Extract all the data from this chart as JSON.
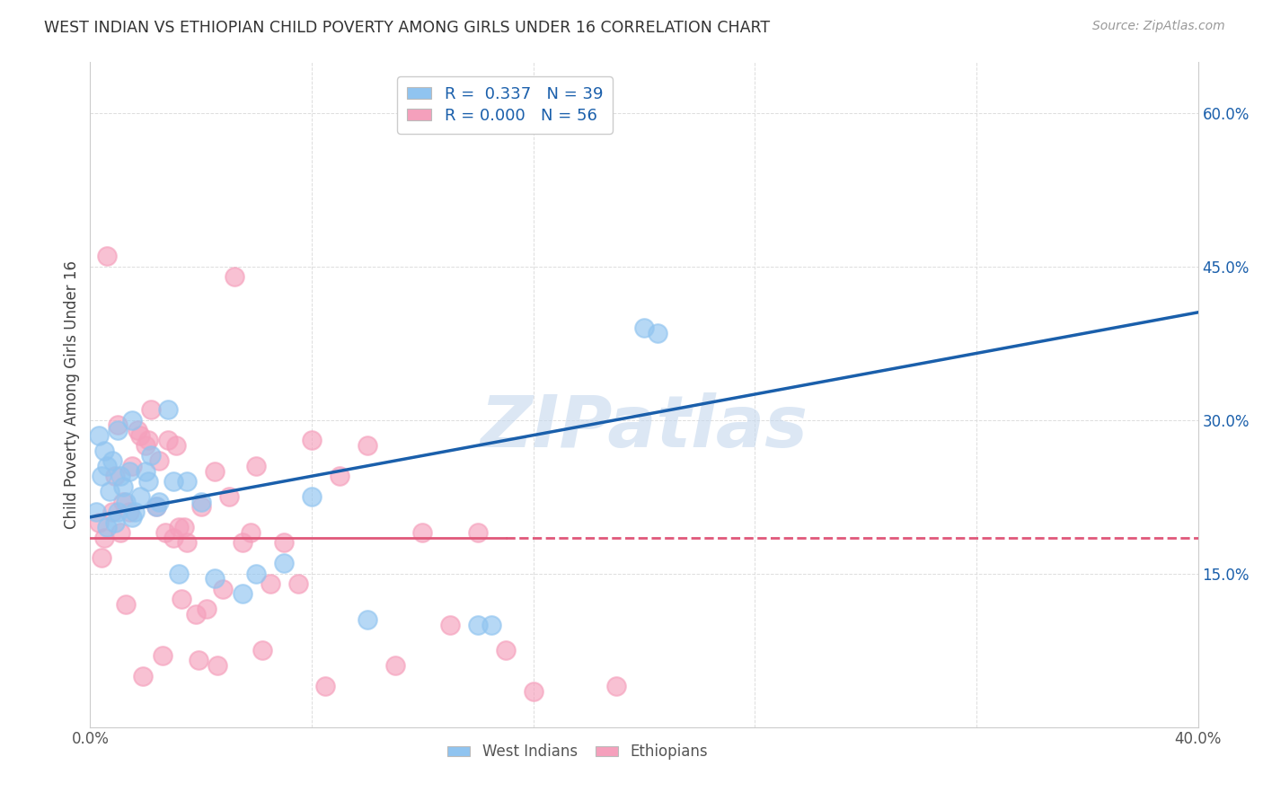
{
  "title": "WEST INDIAN VS ETHIOPIAN CHILD POVERTY AMONG GIRLS UNDER 16 CORRELATION CHART",
  "source": "Source: ZipAtlas.com",
  "ylabel": "Child Poverty Among Girls Under 16",
  "xlim": [
    0.0,
    40.0
  ],
  "ylim": [
    0.0,
    65.0
  ],
  "yticks": [
    15.0,
    30.0,
    45.0,
    60.0
  ],
  "xtick_positions": [
    0.0,
    8.0,
    16.0,
    24.0,
    32.0,
    40.0
  ],
  "xtick_labels": [
    "0.0%",
    "",
    "",
    "",
    "",
    "40.0%"
  ],
  "west_indian_R": 0.337,
  "west_indian_N": 39,
  "ethiopian_R": 0.0,
  "ethiopian_N": 56,
  "west_indian_color": "#90C4F0",
  "ethiopian_color": "#F5A0BC",
  "trend_blue_color": "#1A5FAB",
  "trend_pink_color": "#E0587A",
  "watermark": "ZIPatlas",
  "watermark_color": "#C5D8EE",
  "background_color": "#FFFFFF",
  "legend_bg": "#FFFFFF",
  "west_indians_x": [
    1.0,
    1.5,
    0.3,
    0.5,
    0.8,
    0.6,
    0.4,
    1.2,
    1.8,
    2.5,
    1.0,
    1.5,
    0.7,
    2.0,
    1.3,
    3.0,
    2.2,
    1.6,
    0.9,
    2.8,
    3.5,
    0.2,
    0.6,
    1.1,
    2.4,
    3.2,
    4.5,
    6.0,
    8.0,
    10.0,
    14.0,
    14.5,
    20.0,
    20.5,
    1.4,
    2.1,
    5.5,
    7.0,
    4.0
  ],
  "west_indians_y": [
    29.0,
    30.0,
    28.5,
    27.0,
    26.0,
    25.5,
    24.5,
    23.5,
    22.5,
    22.0,
    21.0,
    20.5,
    23.0,
    25.0,
    22.0,
    24.0,
    26.5,
    21.0,
    20.0,
    31.0,
    24.0,
    21.0,
    19.5,
    24.5,
    21.5,
    15.0,
    14.5,
    15.0,
    22.5,
    10.5,
    10.0,
    10.0,
    39.0,
    38.5,
    25.0,
    24.0,
    13.0,
    16.0,
    22.0
  ],
  "ethiopians_x": [
    0.3,
    0.5,
    0.8,
    1.0,
    1.2,
    1.5,
    1.8,
    2.0,
    2.2,
    2.5,
    2.8,
    3.0,
    3.2,
    3.5,
    4.0,
    4.5,
    5.0,
    5.5,
    6.0,
    7.0,
    8.0,
    9.0,
    10.0,
    12.0,
    14.0,
    0.6,
    1.1,
    1.4,
    1.7,
    2.1,
    2.4,
    2.7,
    3.1,
    3.4,
    3.8,
    4.2,
    4.8,
    5.2,
    5.8,
    6.5,
    7.5,
    0.4,
    0.9,
    1.3,
    1.9,
    2.6,
    3.3,
    3.9,
    4.6,
    6.2,
    8.5,
    11.0,
    13.0,
    15.0,
    16.0,
    19.0
  ],
  "ethiopians_y": [
    20.0,
    18.5,
    21.0,
    29.5,
    22.0,
    25.5,
    28.5,
    27.5,
    31.0,
    26.0,
    28.0,
    18.5,
    19.5,
    18.0,
    21.5,
    25.0,
    22.5,
    18.0,
    25.5,
    18.0,
    28.0,
    24.5,
    27.5,
    19.0,
    19.0,
    46.0,
    19.0,
    21.0,
    29.0,
    28.0,
    21.5,
    19.0,
    27.5,
    19.5,
    11.0,
    11.5,
    13.5,
    44.0,
    19.0,
    14.0,
    14.0,
    16.5,
    24.5,
    12.0,
    5.0,
    7.0,
    12.5,
    6.5,
    6.0,
    7.5,
    4.0,
    6.0,
    10.0,
    7.5,
    3.5,
    4.0
  ],
  "blue_trend_x0": 0.0,
  "blue_trend_y0": 20.5,
  "blue_trend_x1": 40.0,
  "blue_trend_y1": 40.5,
  "pink_trend_y": 18.5
}
